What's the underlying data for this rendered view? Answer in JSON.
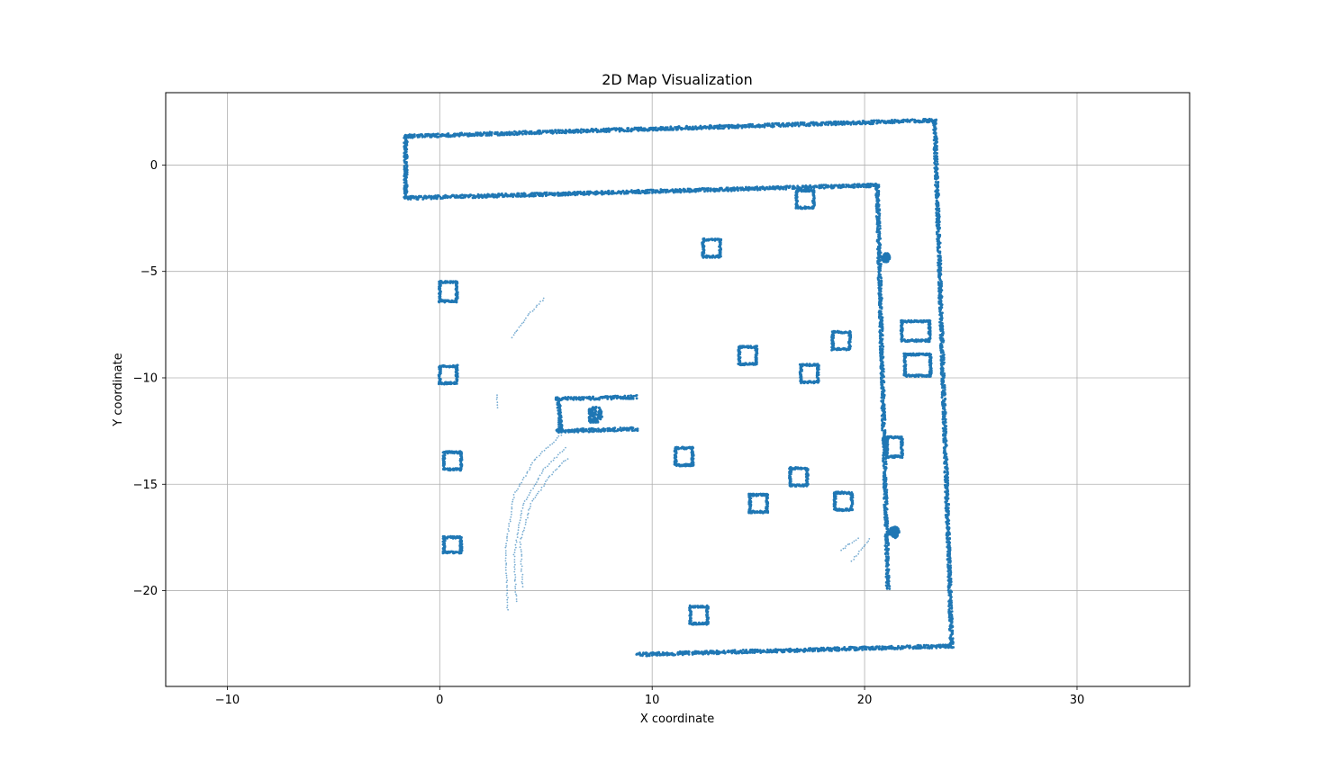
{
  "chart_data": {
    "type": "scatter",
    "title": "2D Map Visualization",
    "xlabel": "X coordinate",
    "ylabel": "Y coordinate",
    "xlim": [
      -12.9,
      35.3
    ],
    "ylim": [
      -24.5,
      3.4
    ],
    "xticks": [
      -10,
      0,
      10,
      20,
      30
    ],
    "yticks": [
      0,
      -5,
      -10,
      -15,
      -20
    ],
    "xtick_labels": [
      "−10",
      "0",
      "10",
      "20",
      "30"
    ],
    "ytick_labels": [
      "0",
      "−5",
      "−10",
      "−15",
      "−20"
    ],
    "grid": true,
    "marker_color": "#1f77b4",
    "series": [
      {
        "walls": [
          [
            [
              -1.6,
              1.35
            ],
            [
              23.3,
              2.1
            ]
          ],
          [
            [
              -1.6,
              1.35
            ],
            [
              -1.6,
              -1.55
            ]
          ],
          [
            [
              -1.6,
              -1.55
            ],
            [
              20.6,
              -0.95
            ]
          ],
          [
            [
              23.3,
              2.1
            ],
            [
              24.1,
              -22.6
            ]
          ],
          [
            [
              20.6,
              -0.95
            ],
            [
              21.1,
              -19.9
            ]
          ],
          [
            [
              9.3,
              -23.0
            ],
            [
              24.1,
              -22.6
            ]
          ],
          [
            [
              5.5,
              -11.0
            ],
            [
              9.2,
              -10.9
            ]
          ],
          [
            [
              5.5,
              -12.5
            ],
            [
              9.3,
              -12.4
            ]
          ],
          [
            [
              5.6,
              -11.0
            ],
            [
              5.7,
              -12.5
            ]
          ]
        ],
        "squares": [
          [
            0.4,
            -5.95,
            0.8,
            0.9
          ],
          [
            0.4,
            -9.85,
            0.8,
            0.8
          ],
          [
            0.6,
            -13.9,
            0.8,
            0.8
          ],
          [
            0.6,
            -17.85,
            0.8,
            0.7
          ],
          [
            11.5,
            -13.7,
            0.8,
            0.8
          ],
          [
            14.5,
            -8.95,
            0.8,
            0.8
          ],
          [
            15.0,
            -15.9,
            0.8,
            0.8
          ],
          [
            16.9,
            -14.65,
            0.8,
            0.8
          ],
          [
            19.0,
            -15.8,
            0.8,
            0.8
          ],
          [
            17.4,
            -9.8,
            0.8,
            0.8
          ],
          [
            18.9,
            -8.25,
            0.8,
            0.8
          ],
          [
            12.2,
            -21.15,
            0.8,
            0.8
          ],
          [
            12.8,
            -3.9,
            0.8,
            0.8
          ],
          [
            17.2,
            -1.6,
            0.8,
            0.8
          ],
          [
            22.4,
            -7.8,
            1.3,
            0.9
          ],
          [
            22.5,
            -9.4,
            1.2,
            1.0
          ],
          [
            21.4,
            -13.25,
            0.7,
            0.9
          ]
        ],
        "blobs": [
          [
            7.3,
            -11.75,
            0.35
          ],
          [
            21.0,
            -4.35,
            0.18
          ],
          [
            21.4,
            -17.25,
            0.22
          ]
        ],
        "arcs": [
          [
            [
              3.4,
              -8.1
            ],
            [
              4.2,
              -7.0
            ],
            [
              5.0,
              -6.2
            ]
          ],
          [
            [
              3.2,
              -20.9
            ],
            [
              3.1,
              -18.0
            ],
            [
              3.5,
              -15.5
            ],
            [
              4.5,
              -13.8
            ],
            [
              5.8,
              -12.6
            ]
          ],
          [
            [
              3.6,
              -20.5
            ],
            [
              3.5,
              -18.3
            ],
            [
              3.9,
              -16.0
            ],
            [
              4.9,
              -14.3
            ],
            [
              6.0,
              -13.2
            ]
          ],
          [
            [
              3.9,
              -19.8
            ],
            [
              3.8,
              -17.7
            ],
            [
              4.3,
              -15.9
            ],
            [
              5.2,
              -14.6
            ],
            [
              6.1,
              -13.7
            ]
          ],
          [
            [
              2.7,
              -10.8
            ],
            [
              2.7,
              -11.5
            ]
          ],
          [
            [
              18.9,
              -18.1
            ],
            [
              19.3,
              -17.8
            ],
            [
              19.8,
              -17.5
            ]
          ],
          [
            [
              19.4,
              -18.6
            ],
            [
              19.9,
              -18.0
            ],
            [
              20.3,
              -17.5
            ]
          ]
        ]
      }
    ]
  }
}
